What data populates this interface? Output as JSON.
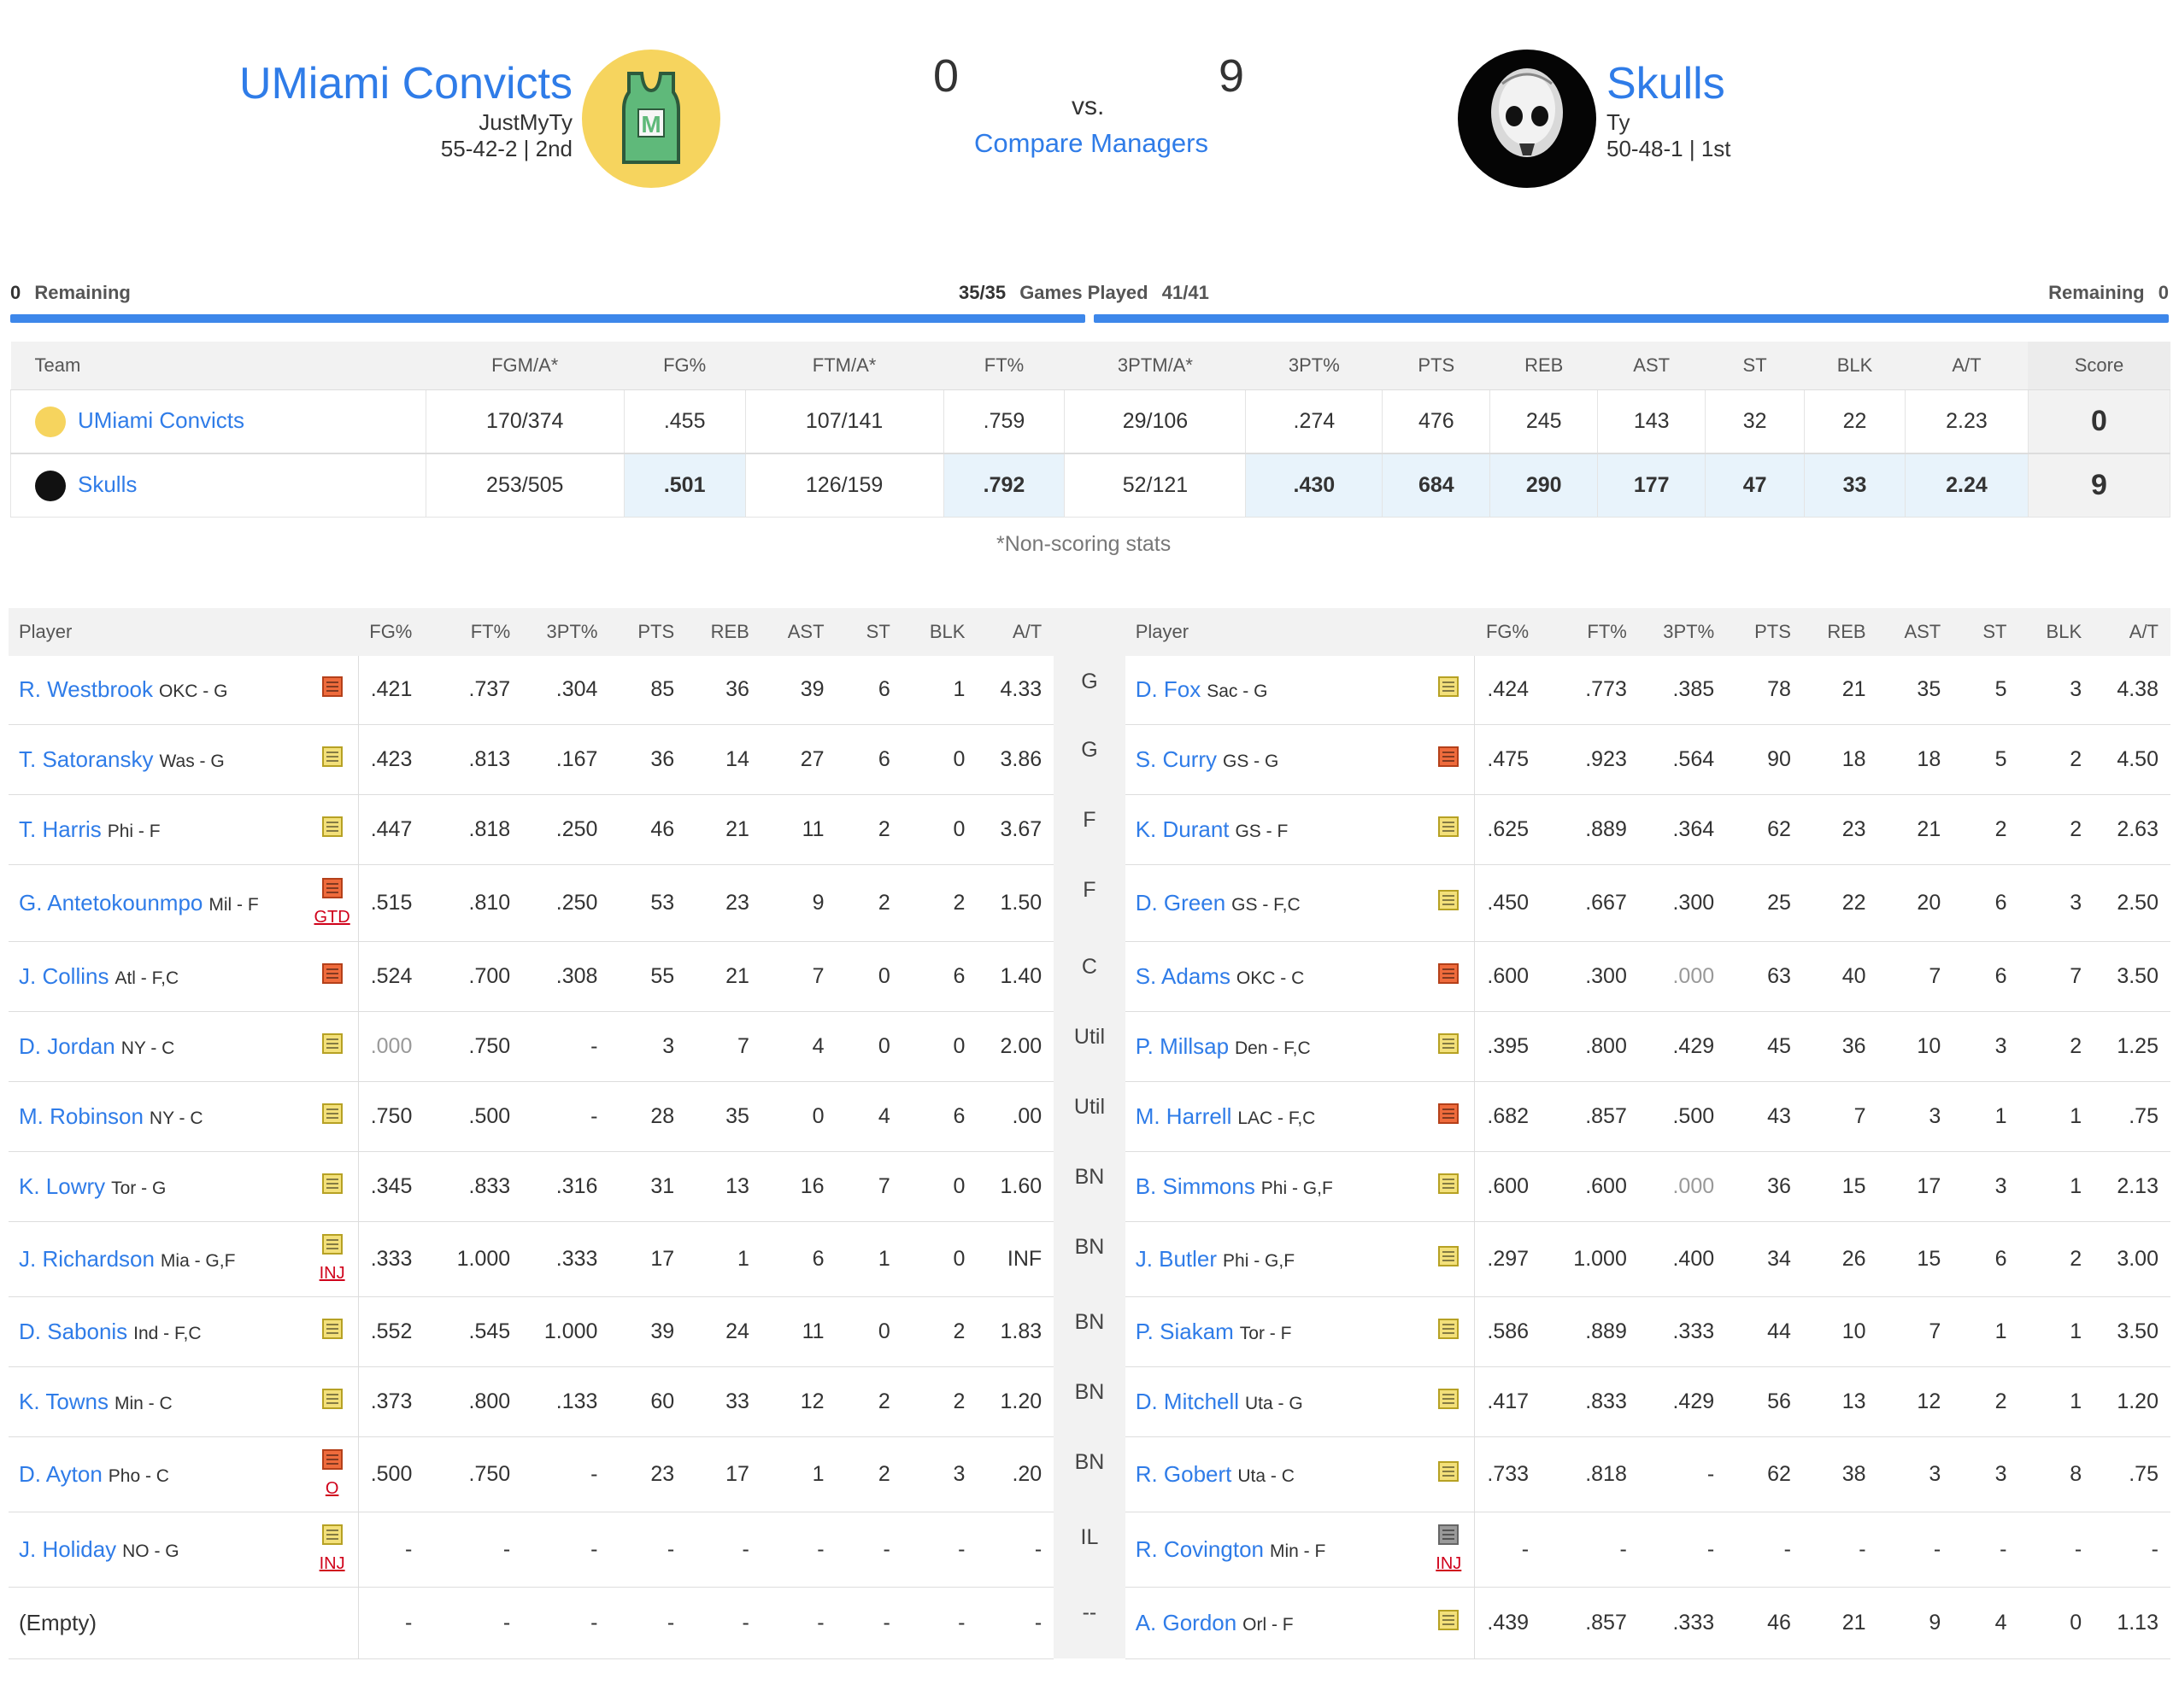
{
  "header": {
    "left": {
      "name": "UMiami Convicts",
      "manager": "JustMyTy",
      "record": "55-42-2 | 2nd",
      "score": "0"
    },
    "right": {
      "name": "Skulls",
      "manager": "Ty",
      "record": "50-48-1 | 1st",
      "score": "9"
    },
    "vs": "vs.",
    "compare": "Compare Managers"
  },
  "progress": {
    "left_num": "0",
    "left_label": "Remaining",
    "mid_left": "35/35",
    "mid_label": "Games Played",
    "mid_right": "41/41",
    "right_label": "Remaining",
    "right_num": "0"
  },
  "totals": {
    "headers": [
      "Team",
      "FGM/A*",
      "FG%",
      "FTM/A*",
      "FT%",
      "3PTM/A*",
      "3PT%",
      "PTS",
      "REB",
      "AST",
      "ST",
      "BLK",
      "A/T",
      "Score"
    ],
    "rows": [
      {
        "team": "UMiami Convicts",
        "vals": [
          "170/374",
          ".455",
          "107/141",
          ".759",
          "29/106",
          ".274",
          "476",
          "245",
          "143",
          "32",
          "22",
          "2.23"
        ],
        "score": "0"
      },
      {
        "team": "Skulls",
        "vals": [
          "253/505",
          ".501",
          "126/159",
          ".792",
          "52/121",
          ".430",
          "684",
          "290",
          "177",
          "47",
          "33",
          "2.24"
        ],
        "score": "9"
      }
    ],
    "note": "*Non-scoring stats"
  },
  "matchup": {
    "headers": {
      "player": "Player",
      "stats": [
        "FG%",
        "FT%",
        "3PT%",
        "PTS",
        "REB",
        "AST",
        "ST",
        "BLK",
        "A/T"
      ]
    },
    "rows": [
      {
        "slot": "G",
        "l": {
          "name": "R. Westbrook",
          "pos": "OKC - G",
          "note": "o",
          "st": "",
          "stats": [
            ".421",
            ".737",
            ".304",
            "85",
            "36",
            "39",
            "6",
            "1",
            "4.33"
          ]
        },
        "r": {
          "name": "D. Fox",
          "pos": "Sac - G",
          "note": "y",
          "st": "",
          "stats": [
            ".424",
            ".773",
            ".385",
            "78",
            "21",
            "35",
            "5",
            "3",
            "4.38"
          ]
        }
      },
      {
        "slot": "G",
        "l": {
          "name": "T. Satoransky",
          "pos": "Was - G",
          "note": "y",
          "st": "",
          "stats": [
            ".423",
            ".813",
            ".167",
            "36",
            "14",
            "27",
            "6",
            "0",
            "3.86"
          ]
        },
        "r": {
          "name": "S. Curry",
          "pos": "GS - G",
          "note": "o",
          "st": "",
          "stats": [
            ".475",
            ".923",
            ".564",
            "90",
            "18",
            "18",
            "5",
            "2",
            "4.50"
          ]
        }
      },
      {
        "slot": "F",
        "l": {
          "name": "T. Harris",
          "pos": "Phi - F",
          "note": "y",
          "st": "",
          "stats": [
            ".447",
            ".818",
            ".250",
            "46",
            "21",
            "11",
            "2",
            "0",
            "3.67"
          ]
        },
        "r": {
          "name": "K. Durant",
          "pos": "GS - F",
          "note": "y",
          "st": "",
          "stats": [
            ".625",
            ".889",
            ".364",
            "62",
            "23",
            "21",
            "2",
            "2",
            "2.63"
          ]
        }
      },
      {
        "slot": "F",
        "l": {
          "name": "G. Antetokounmpo",
          "pos": "Mil - F",
          "note": "o",
          "st": "GTD",
          "stats": [
            ".515",
            ".810",
            ".250",
            "53",
            "23",
            "9",
            "2",
            "2",
            "1.50"
          ]
        },
        "r": {
          "name": "D. Green",
          "pos": "GS - F,C",
          "note": "y",
          "st": "",
          "stats": [
            ".450",
            ".667",
            ".300",
            "25",
            "22",
            "20",
            "6",
            "3",
            "2.50"
          ]
        }
      },
      {
        "slot": "C",
        "l": {
          "name": "J. Collins",
          "pos": "Atl - F,C",
          "note": "o",
          "st": "",
          "stats": [
            ".524",
            ".700",
            ".308",
            "55",
            "21",
            "7",
            "0",
            "6",
            "1.40"
          ]
        },
        "r": {
          "name": "S. Adams",
          "pos": "OKC - C",
          "note": "o",
          "st": "",
          "stats": [
            ".600",
            ".300",
            ".000",
            "63",
            "40",
            "7",
            "6",
            "7",
            "3.50"
          ]
        }
      },
      {
        "slot": "Util",
        "l": {
          "name": "D. Jordan",
          "pos": "NY - C",
          "note": "y",
          "st": "",
          "stats": [
            ".000",
            ".750",
            "-",
            "3",
            "7",
            "4",
            "0",
            "0",
            "2.00"
          ]
        },
        "r": {
          "name": "P. Millsap",
          "pos": "Den - F,C",
          "note": "y",
          "st": "",
          "stats": [
            ".395",
            ".800",
            ".429",
            "45",
            "36",
            "10",
            "3",
            "2",
            "1.25"
          ]
        }
      },
      {
        "slot": "Util",
        "l": {
          "name": "M. Robinson",
          "pos": "NY - C",
          "note": "y",
          "st": "",
          "stats": [
            ".750",
            ".500",
            "-",
            "28",
            "35",
            "0",
            "4",
            "6",
            ".00"
          ]
        },
        "r": {
          "name": "M. Harrell",
          "pos": "LAC - F,C",
          "note": "o",
          "st": "",
          "stats": [
            ".682",
            ".857",
            ".500",
            "43",
            "7",
            "3",
            "1",
            "1",
            ".75"
          ]
        }
      },
      {
        "slot": "BN",
        "l": {
          "name": "K. Lowry",
          "pos": "Tor - G",
          "note": "y",
          "st": "",
          "stats": [
            ".345",
            ".833",
            ".316",
            "31",
            "13",
            "16",
            "7",
            "0",
            "1.60"
          ]
        },
        "r": {
          "name": "B. Simmons",
          "pos": "Phi - G,F",
          "note": "y",
          "st": "",
          "stats": [
            ".600",
            ".600",
            ".000",
            "36",
            "15",
            "17",
            "3",
            "1",
            "2.13"
          ]
        }
      },
      {
        "slot": "BN",
        "l": {
          "name": "J. Richardson",
          "pos": "Mia - G,F",
          "note": "y",
          "st": "INJ",
          "stats": [
            ".333",
            "1.000",
            ".333",
            "17",
            "1",
            "6",
            "1",
            "0",
            "INF"
          ]
        },
        "r": {
          "name": "J. Butler",
          "pos": "Phi - G,F",
          "note": "y",
          "st": "",
          "stats": [
            ".297",
            "1.000",
            ".400",
            "34",
            "26",
            "15",
            "6",
            "2",
            "3.00"
          ]
        }
      },
      {
        "slot": "BN",
        "l": {
          "name": "D. Sabonis",
          "pos": "Ind - F,C",
          "note": "y",
          "st": "",
          "stats": [
            ".552",
            ".545",
            "1.000",
            "39",
            "24",
            "11",
            "0",
            "2",
            "1.83"
          ]
        },
        "r": {
          "name": "P. Siakam",
          "pos": "Tor - F",
          "note": "y",
          "st": "",
          "stats": [
            ".586",
            ".889",
            ".333",
            "44",
            "10",
            "7",
            "1",
            "1",
            "3.50"
          ]
        }
      },
      {
        "slot": "BN",
        "l": {
          "name": "K. Towns",
          "pos": "Min - C",
          "note": "y",
          "st": "",
          "stats": [
            ".373",
            ".800",
            ".133",
            "60",
            "33",
            "12",
            "2",
            "2",
            "1.20"
          ]
        },
        "r": {
          "name": "D. Mitchell",
          "pos": "Uta - G",
          "note": "y",
          "st": "",
          "stats": [
            ".417",
            ".833",
            ".429",
            "56",
            "13",
            "12",
            "2",
            "1",
            "1.20"
          ]
        }
      },
      {
        "slot": "BN",
        "l": {
          "name": "D. Ayton",
          "pos": "Pho - C",
          "note": "o",
          "st": "O",
          "stats": [
            ".500",
            ".750",
            "-",
            "23",
            "17",
            "1",
            "2",
            "3",
            ".20"
          ]
        },
        "r": {
          "name": "R. Gobert",
          "pos": "Uta - C",
          "note": "y",
          "st": "",
          "stats": [
            ".733",
            ".818",
            "-",
            "62",
            "38",
            "3",
            "3",
            "8",
            ".75"
          ]
        }
      },
      {
        "slot": "IL",
        "l": {
          "name": "J. Holiday",
          "pos": "NO - G",
          "note": "y",
          "st": "INJ",
          "stats": [
            "-",
            "-",
            "-",
            "-",
            "-",
            "-",
            "-",
            "-",
            "-"
          ]
        },
        "r": {
          "name": "R. Covington",
          "pos": "Min - F",
          "note": "g",
          "st": "INJ",
          "stats": [
            "-",
            "-",
            "-",
            "-",
            "-",
            "-",
            "-",
            "-",
            "-"
          ]
        }
      },
      {
        "slot": "--",
        "l": {
          "name": "(Empty)",
          "pos": "",
          "note": "",
          "st": "",
          "empty": true,
          "stats": [
            "-",
            "-",
            "-",
            "-",
            "-",
            "-",
            "-",
            "-",
            "-"
          ]
        },
        "r": {
          "name": "A. Gordon",
          "pos": "Orl - F",
          "note": "y",
          "st": "",
          "stats": [
            ".439",
            ".857",
            ".333",
            "46",
            "21",
            "9",
            "4",
            "0",
            "1.13"
          ]
        }
      }
    ]
  },
  "colors": {
    "link": "#2f7ce8",
    "bar": "#3d87ea",
    "win_bg": "#e8f3fb",
    "note_yellow": "#f3e07a",
    "note_orange": "#ef6b3c",
    "status_red": "#d0021b"
  }
}
